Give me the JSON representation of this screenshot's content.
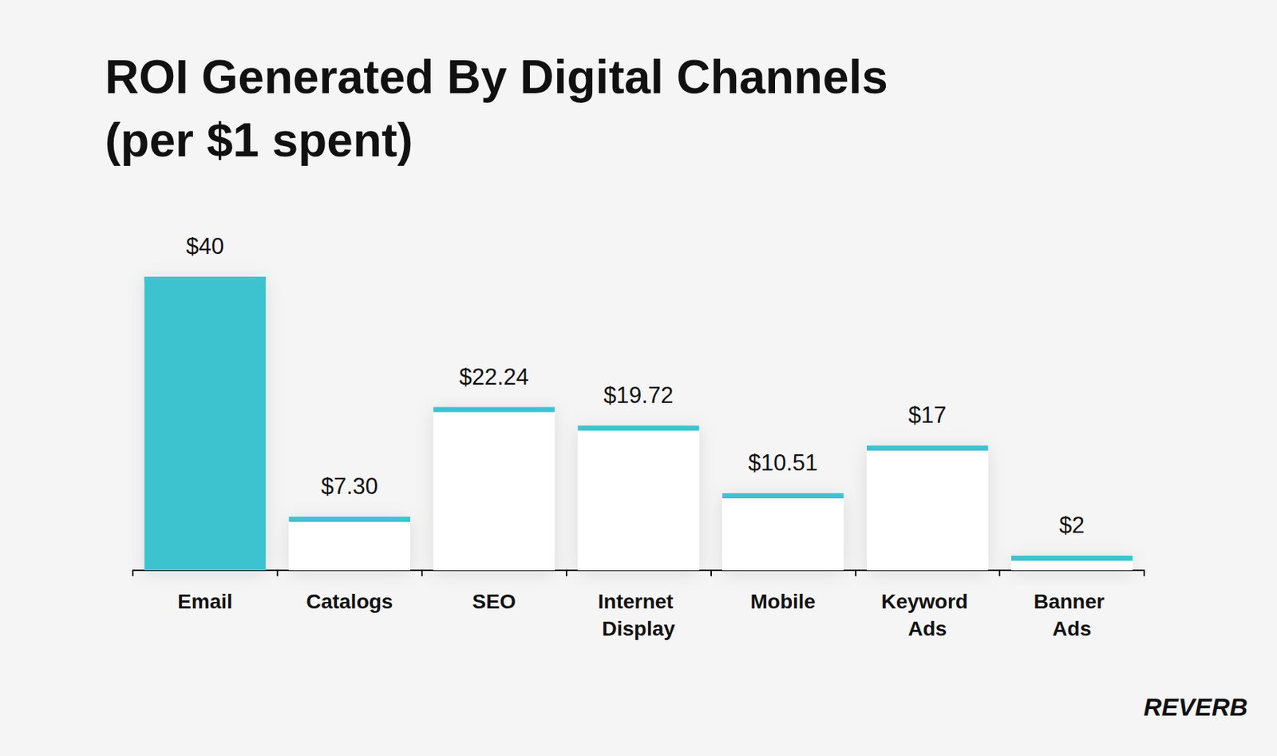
{
  "chart_data": {
    "type": "bar",
    "title": "ROI Generated By Digital Channels",
    "subtitle": "(per $1 spent)",
    "categories": [
      "Email",
      "Catalogs",
      "SEO",
      "Internet Display",
      "Mobile",
      "Keyword Ads",
      "Banner Ads"
    ],
    "values": [
      40,
      7.3,
      22.24,
      19.72,
      10.51,
      17,
      2
    ],
    "value_labels": [
      "$40",
      "$7.30",
      "$22.24",
      "$19.72",
      "$10.51",
      "$17",
      "$2"
    ],
    "colors": [
      "#3ec3cf",
      "#ffffff",
      "#ffffff",
      "#ffffff",
      "#ffffff",
      "#ffffff",
      "#ffffff"
    ],
    "ylim": [
      0,
      40
    ],
    "grid": false,
    "data_labels": true,
    "tick_labels": "x",
    "annotations": [
      "REVERB"
    ]
  }
}
